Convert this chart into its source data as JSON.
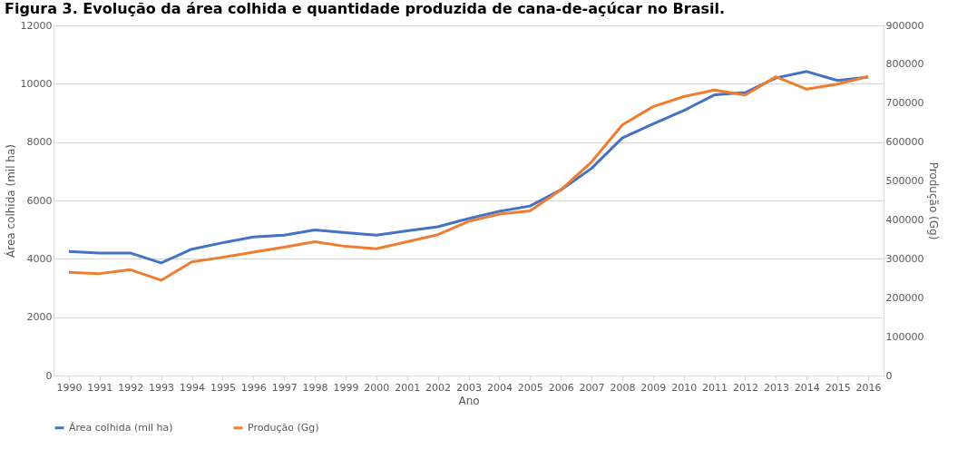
{
  "chart_data": {
    "type": "line",
    "title": "Figura 3. Evolução da área colhida e quantidade produzida de cana-de-açúcar no Brasil.",
    "xlabel": "Ano",
    "ylabel": "Área colhida (mil ha)",
    "y2label": "Produção (Gg)",
    "categories": [
      "1990",
      "1991",
      "1992",
      "1993",
      "1994",
      "1995",
      "1996",
      "1997",
      "1998",
      "1999",
      "2000",
      "2001",
      "2002",
      "2003",
      "2004",
      "2005",
      "2006",
      "2007",
      "2008",
      "2009",
      "2010",
      "2011",
      "2012",
      "2013",
      "2014",
      "2015",
      "2016"
    ],
    "series": [
      {
        "name": "Área colhida (mil ha)",
        "color": "#4472c4",
        "values": [
          4250,
          4200,
          4200,
          3860,
          4330,
          4550,
          4750,
          4810,
          4990,
          4900,
          4810,
          4960,
          5100,
          5380,
          5630,
          5810,
          6360,
          7100,
          8140,
          8620,
          9080,
          9620,
          9700,
          10200,
          10420,
          10110,
          10230
        ]
      },
      {
        "name": "Produção (Gg)",
        "color": "#ed7d31",
        "axis": "y2",
        "values": [
          265000,
          262000,
          272000,
          245000,
          292000,
          304000,
          317000,
          330000,
          344000,
          332000,
          326000,
          344000,
          362000,
          396000,
          415000,
          423000,
          477000,
          549000,
          644000,
          691000,
          717000,
          734000,
          721000,
          768000,
          736000,
          749000,
          769000
        ]
      }
    ],
    "ylim": [
      0,
      12000
    ],
    "yticks": [
      0,
      2000,
      4000,
      6000,
      8000,
      10000,
      12000
    ],
    "y2lim": [
      0,
      900000
    ],
    "y2ticks": [
      0,
      100000,
      200000,
      300000,
      400000,
      500000,
      600000,
      700000,
      800000,
      900000
    ],
    "grid": "y",
    "legend": "bottom",
    "marker": "none",
    "line_style": "solid"
  }
}
